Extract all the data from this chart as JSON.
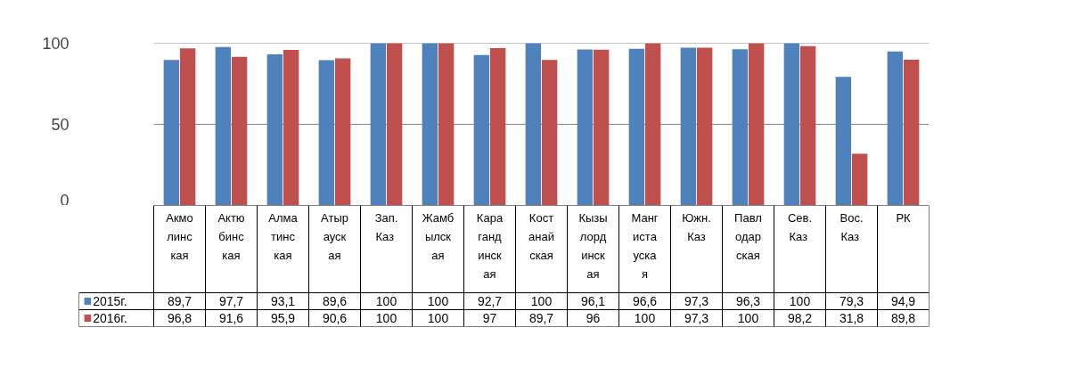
{
  "chart_data": {
    "type": "bar",
    "categories": [
      "Акмолинская",
      "Актюбинская",
      "Алматинская",
      "Атырауская",
      "Зап. Каз",
      "Жамбылская",
      "Карагандинская",
      "Костанайская",
      "Кызылординская",
      "Мангистауская",
      "Южн.Каз",
      "Павлодарская",
      "Сев. Каз",
      "Вос. Каз",
      "РК"
    ],
    "series": [
      {
        "name": "2015г.",
        "color": "#4f81bd",
        "values": [
          89.7,
          97.7,
          93.1,
          89.6,
          100,
          100,
          92.7,
          100,
          96.1,
          96.6,
          97.3,
          96.3,
          100,
          79.3,
          94.9
        ],
        "value_labels": [
          "89,7",
          "97,7",
          "93,1",
          "89,6",
          "100",
          "100",
          "92,7",
          "100",
          "96,1",
          "96,6",
          "97,3",
          "96,3",
          "100",
          "79,3",
          "94,9"
        ]
      },
      {
        "name": "2016г.",
        "color": "#c0504d",
        "values": [
          96.8,
          91.6,
          95.9,
          90.6,
          100,
          100,
          97,
          89.7,
          96,
          100,
          97.3,
          100,
          98.2,
          31.8,
          89.8
        ],
        "value_labels": [
          "96,8",
          "91,6",
          "95,9",
          "90,6",
          "100",
          "100",
          "97",
          "89,7",
          "96",
          "100",
          "97,3",
          "100",
          "98,2",
          "31,8",
          "89,8"
        ]
      }
    ],
    "ylim": [
      0,
      100
    ],
    "yticks": [
      0,
      50,
      100
    ],
    "grid": "y",
    "legend": "bottom left"
  }
}
